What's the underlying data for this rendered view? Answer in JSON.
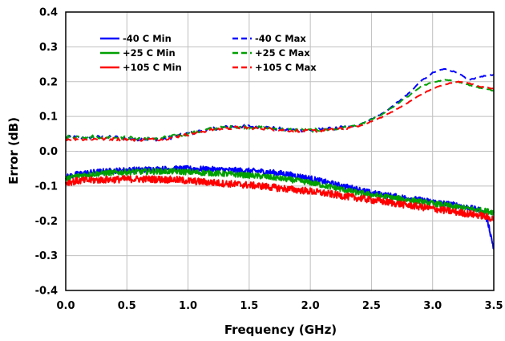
{
  "chart_data": {
    "type": "line",
    "title": "",
    "xlabel": "Frequency (GHz)",
    "ylabel": "Error (dB)",
    "xlim": [
      0,
      3.5
    ],
    "ylim": [
      -0.4,
      0.4
    ],
    "x_ticks": [
      "0.0",
      "0.5",
      "1.0",
      "1.5",
      "2.0",
      "2.5",
      "3.0",
      "3.5"
    ],
    "y_ticks": [
      "0.4",
      "0.3",
      "0.2",
      "0.1",
      "0.0",
      "-0.1",
      "-0.2",
      "-0.3",
      "-0.4"
    ],
    "grid": true,
    "legend_position": "top-left",
    "series": [
      {
        "name": "-40 C Min",
        "color": "#0000ff",
        "dash": "solid",
        "x": [
          0,
          0.1,
          0.3,
          0.5,
          0.7,
          0.9,
          1.0,
          1.2,
          1.4,
          1.6,
          1.8,
          2.0,
          2.2,
          2.4,
          2.5,
          2.7,
          2.9,
          3.0,
          3.2,
          3.4,
          3.45,
          3.5
        ],
        "values": [
          -0.075,
          -0.065,
          -0.058,
          -0.054,
          -0.052,
          -0.05,
          -0.05,
          -0.052,
          -0.055,
          -0.058,
          -0.065,
          -0.078,
          -0.095,
          -0.11,
          -0.12,
          -0.13,
          -0.14,
          -0.145,
          -0.155,
          -0.17,
          -0.2,
          -0.28
        ],
        "noise": 0.008
      },
      {
        "name": "+25 C Min",
        "color": "#00a000",
        "dash": "solid",
        "x": [
          0,
          0.1,
          0.3,
          0.5,
          0.7,
          0.9,
          1.0,
          1.2,
          1.4,
          1.6,
          1.8,
          2.0,
          2.2,
          2.4,
          2.5,
          2.7,
          2.9,
          3.0,
          3.2,
          3.4,
          3.5
        ],
        "values": [
          -0.08,
          -0.07,
          -0.063,
          -0.06,
          -0.058,
          -0.058,
          -0.06,
          -0.063,
          -0.067,
          -0.072,
          -0.08,
          -0.09,
          -0.105,
          -0.12,
          -0.125,
          -0.135,
          -0.145,
          -0.15,
          -0.16,
          -0.17,
          -0.175
        ],
        "noise": 0.008
      },
      {
        "name": "+105 C Min",
        "color": "#ff0000",
        "dash": "solid",
        "x": [
          0,
          0.1,
          0.3,
          0.5,
          0.7,
          0.9,
          1.0,
          1.2,
          1.4,
          1.6,
          1.8,
          2.0,
          2.2,
          2.4,
          2.5,
          2.7,
          2.9,
          3.0,
          3.2,
          3.4,
          3.5
        ],
        "values": [
          -0.09,
          -0.085,
          -0.082,
          -0.08,
          -0.08,
          -0.082,
          -0.085,
          -0.09,
          -0.095,
          -0.1,
          -0.108,
          -0.115,
          -0.125,
          -0.135,
          -0.14,
          -0.15,
          -0.16,
          -0.165,
          -0.175,
          -0.185,
          -0.195
        ],
        "noise": 0.01
      },
      {
        "name": "-40 C Max",
        "color": "#0000ff",
        "dash": "dashed",
        "x": [
          0,
          0.2,
          0.4,
          0.6,
          0.8,
          1.0,
          1.2,
          1.4,
          1.6,
          1.8,
          2.0,
          2.2,
          2.4,
          2.6,
          2.8,
          2.9,
          3.0,
          3.1,
          3.2,
          3.3,
          3.4,
          3.5
        ],
        "values": [
          0.04,
          0.04,
          0.04,
          0.035,
          0.035,
          0.05,
          0.065,
          0.072,
          0.07,
          0.062,
          0.06,
          0.065,
          0.075,
          0.11,
          0.165,
          0.2,
          0.225,
          0.238,
          0.225,
          0.205,
          0.215,
          0.22
        ],
        "noise": 0.005
      },
      {
        "name": "+25 C Max",
        "color": "#00a000",
        "dash": "dashed",
        "x": [
          0,
          0.2,
          0.4,
          0.6,
          0.8,
          1.0,
          1.2,
          1.4,
          1.6,
          1.8,
          2.0,
          2.2,
          2.4,
          2.6,
          2.8,
          2.9,
          3.0,
          3.1,
          3.2,
          3.3,
          3.4,
          3.5
        ],
        "values": [
          0.042,
          0.042,
          0.04,
          0.037,
          0.038,
          0.05,
          0.065,
          0.07,
          0.068,
          0.062,
          0.06,
          0.064,
          0.075,
          0.108,
          0.158,
          0.185,
          0.198,
          0.205,
          0.2,
          0.19,
          0.18,
          0.175
        ],
        "noise": 0.005
      },
      {
        "name": "+105 C Max",
        "color": "#ff0000",
        "dash": "dashed",
        "x": [
          0,
          0.2,
          0.4,
          0.6,
          0.8,
          1.0,
          1.2,
          1.4,
          1.6,
          1.8,
          2.0,
          2.2,
          2.4,
          2.6,
          2.8,
          2.9,
          3.0,
          3.1,
          3.2,
          3.3,
          3.4,
          3.5
        ],
        "values": [
          0.035,
          0.035,
          0.035,
          0.033,
          0.035,
          0.048,
          0.062,
          0.068,
          0.066,
          0.06,
          0.058,
          0.062,
          0.072,
          0.1,
          0.14,
          0.162,
          0.18,
          0.192,
          0.2,
          0.195,
          0.185,
          0.18
        ],
        "noise": 0.004
      }
    ]
  }
}
